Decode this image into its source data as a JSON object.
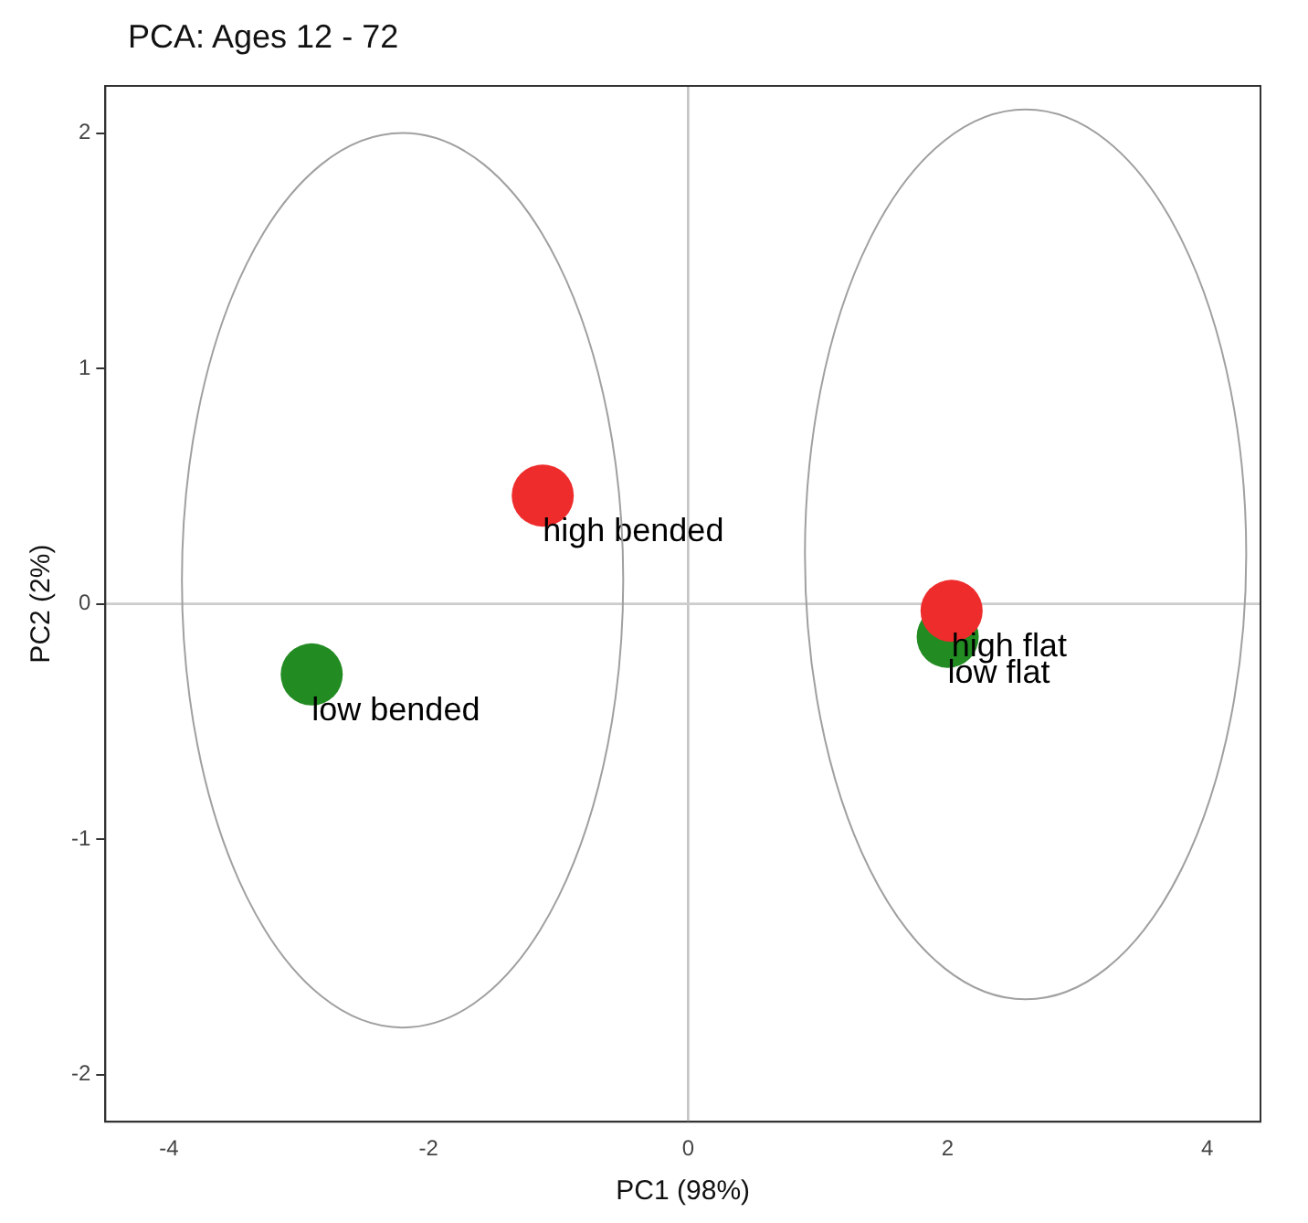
{
  "chart_data": {
    "type": "scatter",
    "title": "PCA: Ages 12 - 72",
    "xlabel": "PC1 (98%)",
    "ylabel": "PC2 (2%)",
    "xlim": [
      -4.49,
      4.41
    ],
    "ylim": [
      -2.2,
      2.2
    ],
    "xticks": [
      -4,
      -2,
      0,
      2,
      4
    ],
    "yticks": [
      -2,
      -1,
      0,
      1,
      2
    ],
    "grid": false,
    "legend": false,
    "marker": "circle",
    "series": [
      {
        "type": "scatter",
        "color": "#228b22",
        "x": [
          -2.9,
          2.0
        ],
        "values": [
          -0.3,
          -0.14
        ]
      },
      {
        "type": "scatter",
        "color": "#ee2c2c",
        "x": [
          -1.12,
          2.03
        ],
        "values": [
          0.46,
          -0.03
        ]
      }
    ],
    "ref_lines": [
      {
        "axis": "x",
        "value": 0,
        "color": "#c4c4c4"
      },
      {
        "axis": "y",
        "value": 0,
        "color": "#cccccc"
      }
    ],
    "annotations": [
      {
        "text": "low bended",
        "x": -2.9,
        "y": -0.3
      },
      {
        "text": "high bended",
        "x": -1.12,
        "y": 0.46
      },
      {
        "text": "high flat",
        "x": 2.03,
        "y": -0.03
      },
      {
        "text": "low flat",
        "x": 2.0,
        "y": -0.14
      }
    ]
  }
}
